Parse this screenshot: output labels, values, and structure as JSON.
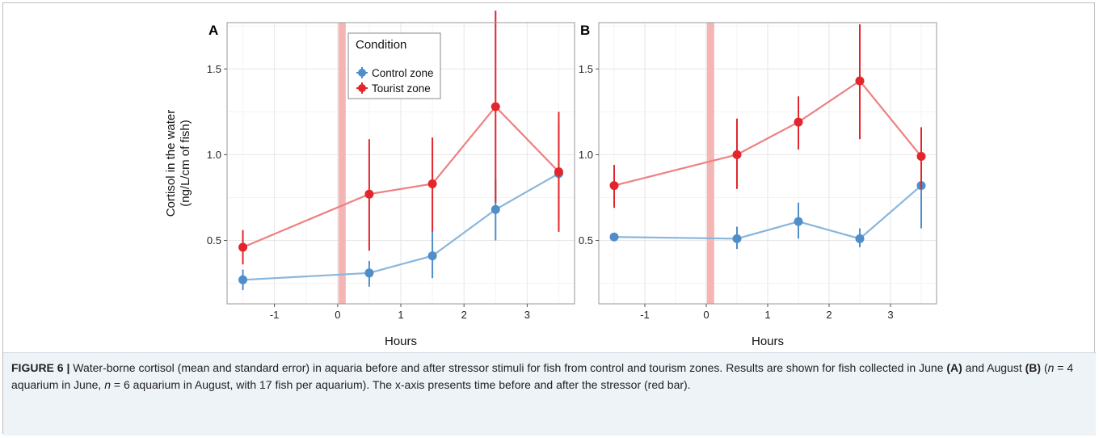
{
  "chart_data": [
    {
      "type": "line",
      "panel_label": "A",
      "xlabel": "Hours",
      "ylabel_line1": "Cortisol in the water",
      "ylabel_line2": "(ng/L/cm of fish)",
      "xlim": [
        -1.75,
        3.75
      ],
      "ylim": [
        0.13,
        1.77
      ],
      "xticks": [
        -1,
        0,
        1,
        2,
        3
      ],
      "xtick_labels": [
        "-1",
        "0",
        "1",
        "2",
        "3"
      ],
      "yticks": [
        0.5,
        1.0,
        1.5
      ],
      "ytick_labels": [
        "0.5",
        "1.0",
        "1.5"
      ],
      "grid": true,
      "stressor_bar": {
        "x": 0.07,
        "color": "#f5b5b5"
      },
      "legend": {
        "title": "Condition",
        "placement": "top-center"
      },
      "series": [
        {
          "name": "Control zone",
          "color": "#4f8ec9",
          "line_color": "#8ab6dc",
          "x": [
            -1.5,
            0.5,
            1.5,
            2.5,
            3.5
          ],
          "y": [
            0.27,
            0.31,
            0.41,
            0.68,
            0.89
          ],
          "err_low": [
            0.21,
            0.23,
            0.28,
            0.5,
            0.62
          ],
          "err_high": [
            0.33,
            0.38,
            0.55,
            0.86,
            1.17
          ]
        },
        {
          "name": "Tourist zone",
          "color": "#e3262b",
          "line_color": "#ee8080",
          "x": [
            -1.5,
            0.5,
            1.5,
            2.5,
            3.5
          ],
          "y": [
            0.46,
            0.77,
            0.83,
            1.28,
            0.9
          ],
          "err_low": [
            0.36,
            0.44,
            0.55,
            0.72,
            0.55
          ],
          "err_high": [
            0.56,
            1.09,
            1.1,
            1.84,
            1.25
          ]
        }
      ]
    },
    {
      "type": "line",
      "panel_label": "B",
      "xlabel": "Hours",
      "xlim": [
        -1.75,
        3.75
      ],
      "ylim": [
        0.13,
        1.77
      ],
      "xticks": [
        -1,
        0,
        1,
        2,
        3
      ],
      "xtick_labels": [
        "-1",
        "0",
        "1",
        "2",
        "3"
      ],
      "yticks": [
        0.5,
        1.0,
        1.5
      ],
      "ytick_labels": [
        "0.5",
        "1.0",
        "1.5"
      ],
      "grid": true,
      "stressor_bar": {
        "x": 0.07,
        "color": "#f5b5b5"
      },
      "series": [
        {
          "name": "Control zone",
          "color": "#4f8ec9",
          "line_color": "#8ab6dc",
          "x": [
            -1.5,
            0.5,
            1.5,
            2.5,
            3.5
          ],
          "y": [
            0.52,
            0.51,
            0.61,
            0.51,
            0.82
          ],
          "err_low": [
            0.5,
            0.45,
            0.51,
            0.46,
            0.57
          ],
          "err_high": [
            0.54,
            0.58,
            0.72,
            0.57,
            1.07
          ]
        },
        {
          "name": "Tourist zone",
          "color": "#e3262b",
          "line_color": "#ee8080",
          "x": [
            -1.5,
            0.5,
            1.5,
            2.5,
            3.5
          ],
          "y": [
            0.82,
            1.0,
            1.19,
            1.43,
            0.99
          ],
          "err_low": [
            0.69,
            0.8,
            1.03,
            1.09,
            0.8
          ],
          "err_high": [
            0.94,
            1.21,
            1.34,
            1.76,
            1.16
          ]
        }
      ]
    }
  ],
  "caption": {
    "label": "FIGURE 6 |",
    "part1": " Water-borne cortisol (mean and standard error) in aquaria before and after stressor stimuli for fish from control and tourism zones. Results are shown for fish collected in June ",
    "june_ref": "(A)",
    "part2": " and August ",
    "aug_ref": "(B)",
    "part3": " (",
    "n_italic": "n",
    "part4": " = 4 aquarium in June, ",
    "n_italic2": "n",
    "part5": " = 6 aquarium in August, with 17 fish per aquarium). The x-axis presents time before and after the stressor (red bar)."
  }
}
